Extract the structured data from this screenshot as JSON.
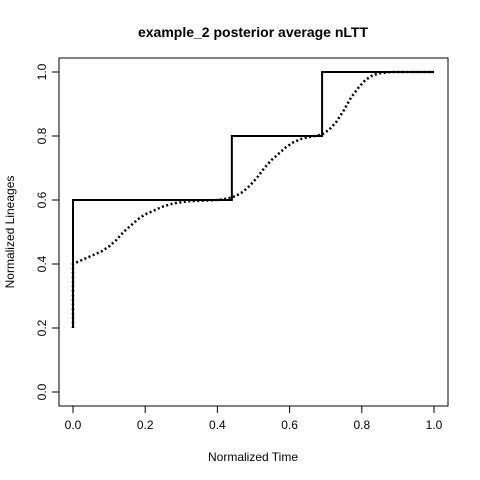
{
  "chart_data": {
    "type": "line",
    "title": "example_2  posterior average nLTT",
    "xlabel": "Normalized Time",
    "ylabel": "Normalized Lineages",
    "xlim": [
      0,
      1
    ],
    "ylim": [
      0,
      1
    ],
    "x_ticks": [
      0.0,
      0.2,
      0.4,
      0.6,
      0.8,
      1.0
    ],
    "x_tick_labels": [
      "0.0",
      "0.2",
      "0.4",
      "0.6",
      "0.8",
      "1.0"
    ],
    "y_ticks": [
      0.0,
      0.2,
      0.4,
      0.6,
      0.8,
      1.0
    ],
    "y_tick_labels": [
      "0.0",
      "0.2",
      "0.4",
      "0.6",
      "0.8",
      "1.0"
    ],
    "grid": false,
    "series": [
      {
        "style": "solid-step",
        "x": [
          0.0,
          0.0,
          0.44,
          0.44,
          0.69,
          0.69,
          1.0
        ],
        "y": [
          0.2,
          0.6,
          0.6,
          0.8,
          0.8,
          1.0,
          1.0
        ]
      },
      {
        "style": "dotted",
        "x": [
          0.0,
          0.0,
          0.02,
          0.05,
          0.08,
          0.1,
          0.12,
          0.14,
          0.16,
          0.18,
          0.2,
          0.22,
          0.25,
          0.28,
          0.32,
          0.36,
          0.4,
          0.43,
          0.45,
          0.47,
          0.49,
          0.51,
          0.53,
          0.55,
          0.57,
          0.59,
          0.61,
          0.63,
          0.65,
          0.67,
          0.69,
          0.71,
          0.73,
          0.75,
          0.77,
          0.79,
          0.81,
          0.83,
          0.85,
          0.88,
          0.92,
          0.96,
          1.0
        ],
        "y": [
          0.2,
          0.4,
          0.41,
          0.425,
          0.44,
          0.455,
          0.475,
          0.5,
          0.52,
          0.54,
          0.555,
          0.565,
          0.58,
          0.59,
          0.596,
          0.598,
          0.6,
          0.605,
          0.612,
          0.625,
          0.645,
          0.67,
          0.7,
          0.725,
          0.745,
          0.765,
          0.78,
          0.79,
          0.796,
          0.8,
          0.805,
          0.82,
          0.845,
          0.88,
          0.92,
          0.95,
          0.975,
          0.99,
          0.996,
          1.0,
          1.0,
          1.0,
          1.0
        ]
      }
    ]
  }
}
